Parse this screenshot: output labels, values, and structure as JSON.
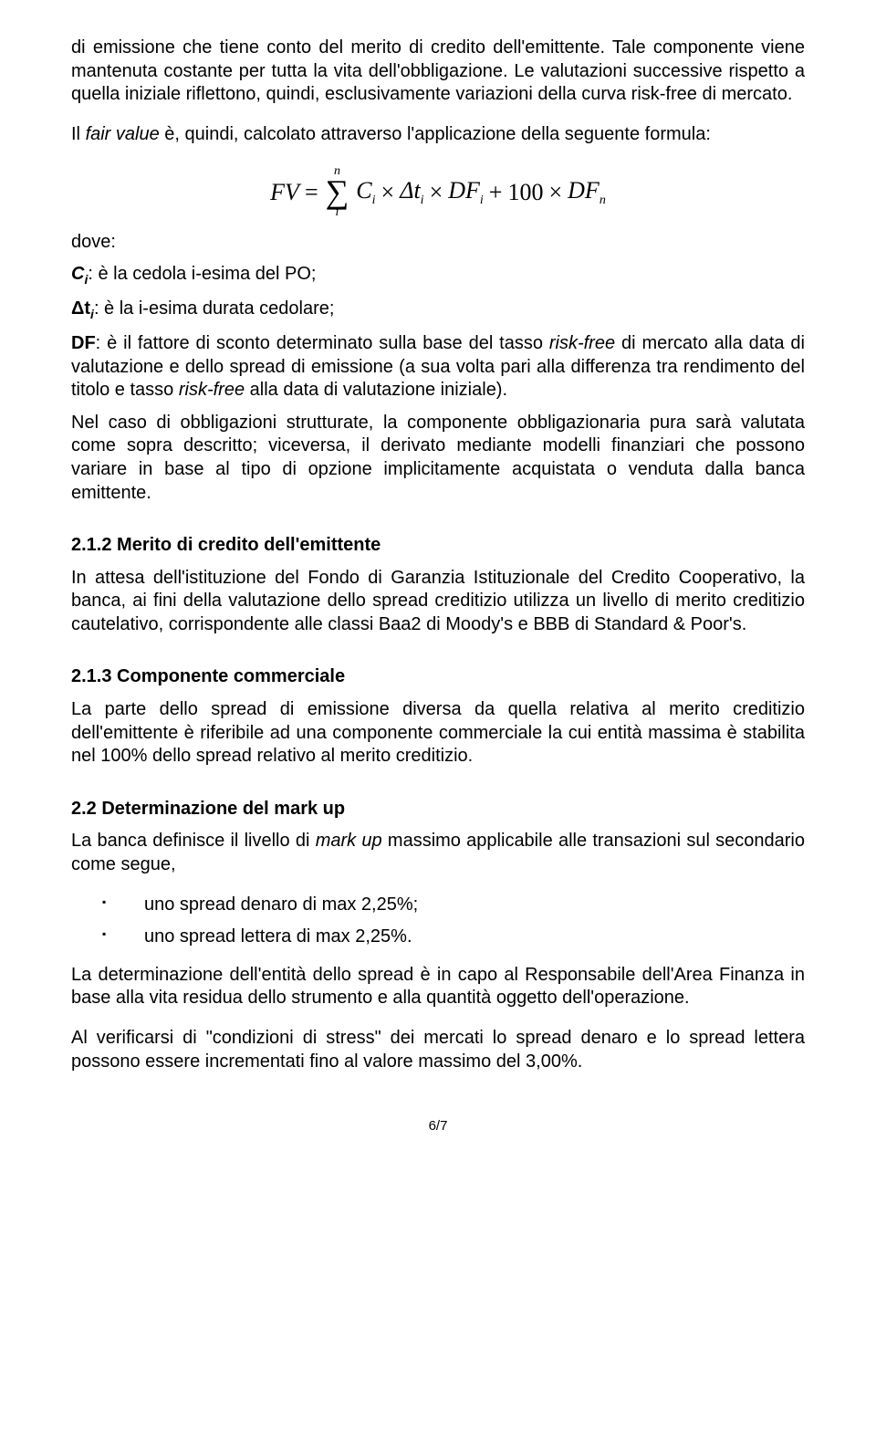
{
  "p1": "di emissione che tiene conto del merito di credito dell'emittente. Tale componente viene mantenuta costante per tutta la vita dell'obbligazione. Le valutazioni successive rispetto a quella iniziale riflettono, quindi, esclusivamente variazioni della curva risk-free di mercato.",
  "p2_pre": "Il ",
  "p2_fair": "fair value",
  "p2_post": " è, quindi, calcolato attraverso l'applicazione della seguente formula:",
  "formula": {
    "fv": "FV",
    "eq": "=",
    "sum_top": "n",
    "sum_bot": "i",
    "c": "C",
    "c_sub": "i",
    "times": "×",
    "dt": "Δt",
    "dt_sub": "i",
    "df": "DF",
    "df_sub": "i",
    "plus": "+",
    "hundred": "100",
    "dfn": "DF",
    "dfn_sub": "n"
  },
  "dove": "dove:",
  "def_c_sym": "C",
  "def_c_sub": "i",
  "def_c_txt": ": è la cedola i-esima del PO;",
  "def_t_sym": "Δt",
  "def_t_sub": "i",
  "def_t_txt": ": è la i-esima durata cedolare;",
  "def_df_sym": "DF",
  "def_df_txt1": ": è il fattore di sconto determinato sulla base del tasso ",
  "def_df_rf1": "risk-free",
  "def_df_txt2": " di mercato alla data di valutazione e dello spread di emissione (a sua volta pari alla differenza tra rendimento del titolo e tasso ",
  "def_df_rf2": "risk-free",
  "def_df_txt3": " alla data di valutazione iniziale).",
  "p_struct": "Nel caso di obbligazioni strutturate, la componente obbligazionaria pura sarà valutata come sopra descritto; viceversa, il derivato mediante modelli finanziari che possono variare in base al tipo di opzione implicitamente acquistata o venduta dalla banca emittente.",
  "h_212": "2.1.2  Merito di credito dell'emittente",
  "p_212": "In attesa dell'istituzione del Fondo di Garanzia Istituzionale del Credito Cooperativo, la banca, ai fini della valutazione dello spread creditizio utilizza un livello di merito creditizio cautelativo, corrispondente alle classi Baa2 di Moody's e  BBB di Standard & Poor's.",
  "h_213": "2.1.3  Componente commerciale",
  "p_213": "La parte dello spread di emissione diversa da quella relativa al merito creditizio dell'emittente è riferibile ad una componente commerciale la cui entità massima è stabilita nel 100% dello spread relativo al merito creditizio.",
  "h_22": "2.2    Determinazione del mark up",
  "p_22_pre": "La banca definisce il livello di ",
  "p_22_mu": "mark up",
  "p_22_post": " massimo applicabile alle transazioni sul secondario come segue,",
  "b1": "uno spread denaro di max 2,25%;",
  "b2": "uno spread lettera di max 2,25%.",
  "p_resp": "La determinazione dell'entità dello spread è in capo al Responsabile dell'Area Finanza in base alla vita residua dello strumento e alla quantità oggetto dell'operazione.",
  "p_stress": "Al verificarsi di \"condizioni di stress\" dei mercati lo spread denaro e lo spread lettera possono essere incrementati fino al valore massimo del 3,00%.",
  "pagenum": "6/7"
}
